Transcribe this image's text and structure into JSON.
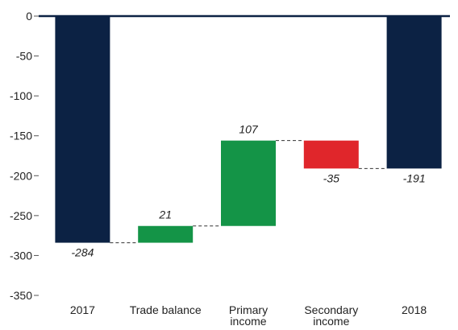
{
  "chart_data": {
    "type": "waterfall",
    "categories": [
      "2017",
      "Trade balance",
      "Primary income",
      "Secondary income",
      "2018"
    ],
    "values": [
      -284,
      21,
      107,
      -35,
      -191
    ],
    "totals": [
      true,
      false,
      false,
      false,
      true
    ],
    "colors": {
      "total": "#0c2244",
      "increase": "#149447",
      "decrease": "#e0262b"
    },
    "ylim": [
      -350,
      0
    ],
    "yticks": [
      0,
      -50,
      -100,
      -150,
      -200,
      -250,
      -300,
      -350
    ]
  }
}
